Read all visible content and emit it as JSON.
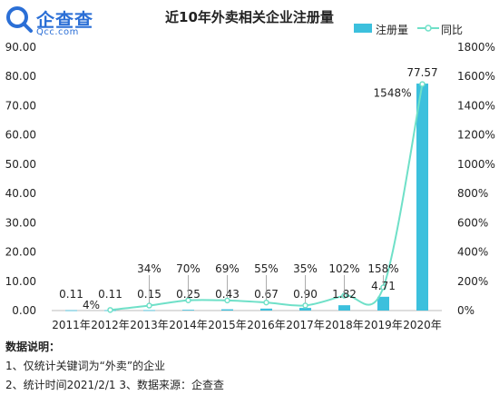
{
  "brand": {
    "name": "企查查",
    "url": "Qcc.com",
    "color": "#2b6fd6"
  },
  "chart_data": {
    "type": "bar+line",
    "title": "近10年外卖相关企业注册量",
    "categories": [
      "2011年",
      "2012年",
      "2013年",
      "2014年",
      "2015年",
      "2016年",
      "2017年",
      "2018年",
      "2019年",
      "2020年"
    ],
    "series": [
      {
        "name": "注册量",
        "type": "bar",
        "axis": "left",
        "color": "#3cc0dd",
        "values": [
          0.11,
          0.11,
          0.15,
          0.25,
          0.43,
          0.67,
          0.9,
          1.82,
          4.71,
          77.57
        ],
        "labels": [
          "0.11",
          "0.11",
          "0.15",
          "0.25",
          "0.43",
          "0.67",
          "0.90",
          "1.82",
          "4.71",
          "77.57"
        ]
      },
      {
        "name": "同比",
        "type": "line",
        "axis": "right",
        "color": "#6fe0c8",
        "values": [
          null,
          4,
          34,
          70,
          69,
          55,
          35,
          102,
          158,
          1548
        ],
        "labels": [
          "",
          "4%",
          "34%",
          "70%",
          "69%",
          "55%",
          "35%",
          "102%",
          "158%",
          "1548%"
        ]
      }
    ],
    "ylim_left": [
      0,
      90
    ],
    "yticks_left": [
      "0.00",
      "10.00",
      "20.00",
      "30.00",
      "40.00",
      "50.00",
      "60.00",
      "70.00",
      "80.00",
      "90.00"
    ],
    "ylim_right": [
      0,
      1800
    ],
    "yticks_right": [
      "0%",
      "200%",
      "400%",
      "600%",
      "800%",
      "1000%",
      "1200%",
      "1400%",
      "1600%",
      "1800%"
    ],
    "grid": false,
    "legend": "top-right"
  },
  "notes": {
    "title": "数据说明：",
    "line1": "1、仅统计关键词为“外卖”的企业",
    "line2": "2、统计时间2021/2/1   3、数据来源：企查查"
  }
}
